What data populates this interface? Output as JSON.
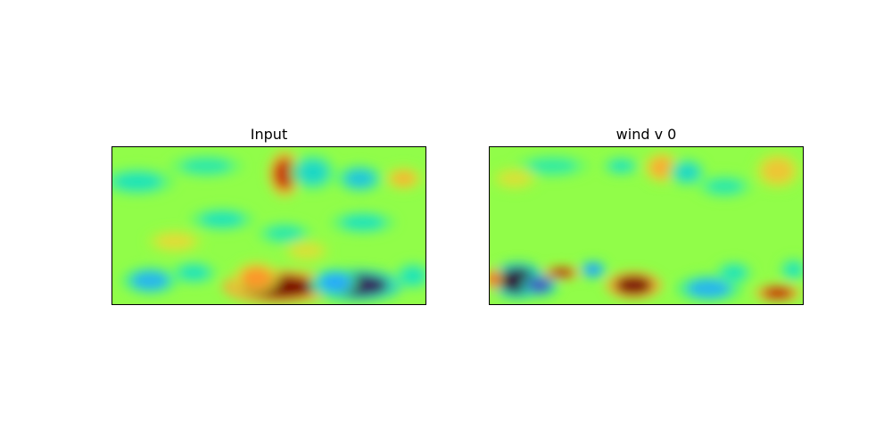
{
  "chart_data": [
    {
      "type": "heatmap",
      "title": "Input",
      "colormap": "turbo",
      "xlabel": "",
      "ylabel": "",
      "ticks": "none",
      "blobs": [
        {
          "cx": 0.53,
          "cy": 0.89,
          "rx": 0.12,
          "ry": 0.075,
          "v": 1.0
        },
        {
          "cx": 0.46,
          "cy": 0.83,
          "rx": 0.05,
          "ry": 0.07,
          "v": 0.74
        },
        {
          "cx": 0.78,
          "cy": 0.88,
          "rx": 0.1,
          "ry": 0.07,
          "v": 0.02
        },
        {
          "cx": 0.71,
          "cy": 0.86,
          "rx": 0.05,
          "ry": 0.06,
          "v": 0.2
        },
        {
          "cx": 0.12,
          "cy": 0.85,
          "rx": 0.06,
          "ry": 0.06,
          "v": 0.22
        },
        {
          "cx": 0.26,
          "cy": 0.8,
          "rx": 0.05,
          "ry": 0.05,
          "v": 0.3
        },
        {
          "cx": 0.55,
          "cy": 0.17,
          "rx": 0.035,
          "ry": 0.1,
          "v": 0.92
        },
        {
          "cx": 0.64,
          "cy": 0.16,
          "rx": 0.05,
          "ry": 0.08,
          "v": 0.28
        },
        {
          "cx": 0.79,
          "cy": 0.2,
          "rx": 0.05,
          "ry": 0.06,
          "v": 0.25
        },
        {
          "cx": 0.93,
          "cy": 0.2,
          "rx": 0.04,
          "ry": 0.05,
          "v": 0.68
        },
        {
          "cx": 0.08,
          "cy": 0.22,
          "rx": 0.08,
          "ry": 0.06,
          "v": 0.3
        },
        {
          "cx": 0.3,
          "cy": 0.12,
          "rx": 0.08,
          "ry": 0.05,
          "v": 0.32
        },
        {
          "cx": 0.35,
          "cy": 0.46,
          "rx": 0.07,
          "ry": 0.05,
          "v": 0.3
        },
        {
          "cx": 0.55,
          "cy": 0.55,
          "rx": 0.06,
          "ry": 0.05,
          "v": 0.32
        },
        {
          "cx": 0.8,
          "cy": 0.48,
          "rx": 0.07,
          "ry": 0.05,
          "v": 0.3
        },
        {
          "cx": 0.2,
          "cy": 0.6,
          "rx": 0.06,
          "ry": 0.05,
          "v": 0.62
        },
        {
          "cx": 0.62,
          "cy": 0.66,
          "rx": 0.05,
          "ry": 0.05,
          "v": 0.6
        },
        {
          "cx": 0.96,
          "cy": 0.82,
          "rx": 0.04,
          "ry": 0.06,
          "v": 0.3
        }
      ]
    },
    {
      "type": "heatmap",
      "title": "wind v 0",
      "colormap": "turbo",
      "xlabel": "",
      "ylabel": "",
      "ticks": "none",
      "blobs": [
        {
          "cx": 0.09,
          "cy": 0.85,
          "rx": 0.06,
          "ry": 0.08,
          "v": 0.0
        },
        {
          "cx": 0.16,
          "cy": 0.88,
          "rx": 0.04,
          "ry": 0.05,
          "v": 0.08
        },
        {
          "cx": 0.23,
          "cy": 0.8,
          "rx": 0.04,
          "ry": 0.03,
          "v": 0.95
        },
        {
          "cx": 0.33,
          "cy": 0.78,
          "rx": 0.03,
          "ry": 0.04,
          "v": 0.18
        },
        {
          "cx": 0.46,
          "cy": 0.88,
          "rx": 0.06,
          "ry": 0.06,
          "v": 1.0
        },
        {
          "cx": 0.7,
          "cy": 0.9,
          "rx": 0.07,
          "ry": 0.06,
          "v": 0.22
        },
        {
          "cx": 0.78,
          "cy": 0.8,
          "rx": 0.04,
          "ry": 0.05,
          "v": 0.3
        },
        {
          "cx": 0.92,
          "cy": 0.93,
          "rx": 0.05,
          "ry": 0.04,
          "v": 0.93
        },
        {
          "cx": 0.97,
          "cy": 0.78,
          "rx": 0.03,
          "ry": 0.05,
          "v": 0.3
        },
        {
          "cx": 0.01,
          "cy": 0.84,
          "rx": 0.02,
          "ry": 0.05,
          "v": 0.82
        },
        {
          "cx": 0.55,
          "cy": 0.13,
          "rx": 0.04,
          "ry": 0.07,
          "v": 0.7
        },
        {
          "cx": 0.63,
          "cy": 0.16,
          "rx": 0.04,
          "ry": 0.06,
          "v": 0.28
        },
        {
          "cx": 0.42,
          "cy": 0.12,
          "rx": 0.04,
          "ry": 0.04,
          "v": 0.3
        },
        {
          "cx": 0.92,
          "cy": 0.15,
          "rx": 0.05,
          "ry": 0.08,
          "v": 0.66
        },
        {
          "cx": 0.2,
          "cy": 0.12,
          "rx": 0.08,
          "ry": 0.05,
          "v": 0.33
        },
        {
          "cx": 0.75,
          "cy": 0.25,
          "rx": 0.06,
          "ry": 0.05,
          "v": 0.32
        },
        {
          "cx": 0.08,
          "cy": 0.2,
          "rx": 0.05,
          "ry": 0.05,
          "v": 0.6
        }
      ]
    }
  ]
}
